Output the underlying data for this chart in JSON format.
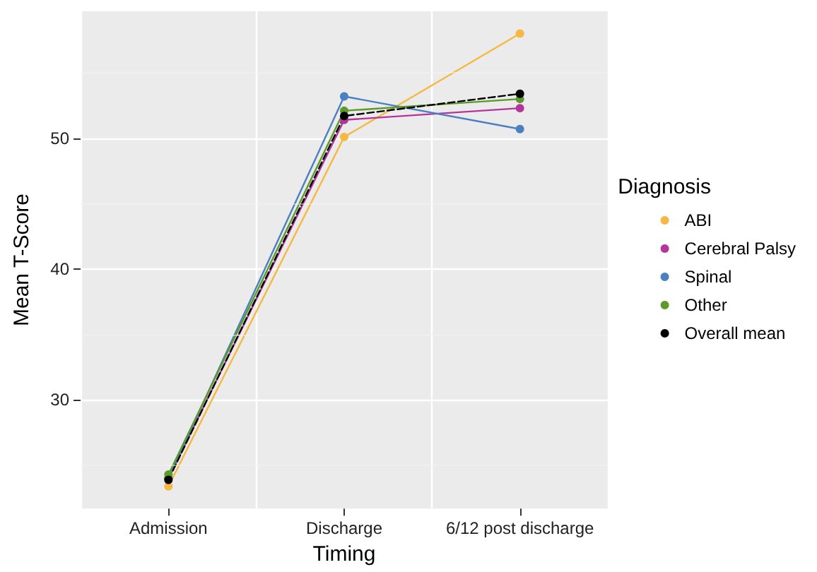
{
  "chart_data": {
    "type": "line",
    "xlabel": "Timing",
    "ylabel": "Mean T-Score",
    "legend_title": "Diagnosis",
    "categories": [
      "Admission",
      "Discharge",
      "6/12 post discharge"
    ],
    "series": [
      {
        "name": "ABI",
        "color": "#f5b841",
        "values": [
          23.4,
          50.1,
          58.0
        ]
      },
      {
        "name": "Cerebral Palsy",
        "color": "#b6359c",
        "values": [
          24.0,
          51.4,
          52.3
        ]
      },
      {
        "name": "Spinal",
        "color": "#4a7fc1",
        "values": [
          24.0,
          53.2,
          50.7
        ]
      },
      {
        "name": "Other",
        "color": "#5c9a2a",
        "values": [
          24.3,
          52.1,
          53.0
        ]
      },
      {
        "name": "Overall mean",
        "color": "#000000",
        "values": [
          23.9,
          51.7,
          53.4
        ],
        "line_style": "dashed"
      }
    ],
    "ylim": [
      21.7,
      59.7
    ],
    "yticks": [
      30,
      40,
      50
    ],
    "grid": true,
    "legend": "right",
    "marker": "circle",
    "line_style": "solid"
  }
}
